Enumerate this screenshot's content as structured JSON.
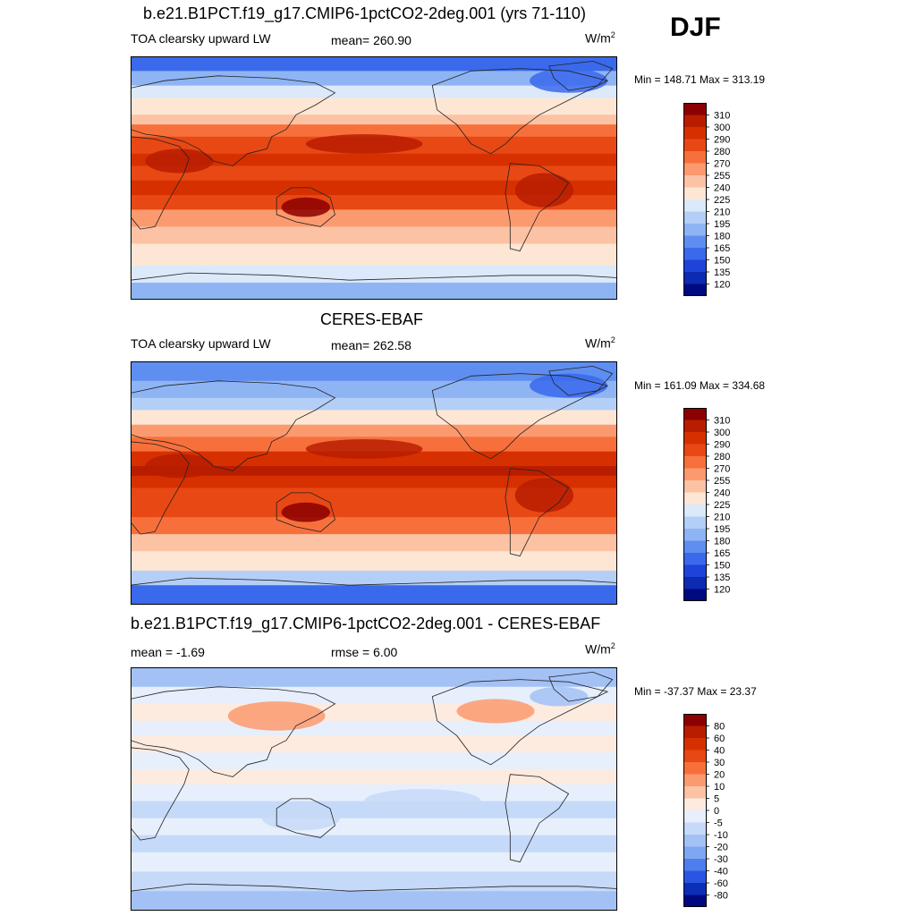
{
  "season": "DJF",
  "chart_data": [
    {
      "type": "heatmap",
      "id": "model",
      "title": "b.e21.B1PCT.f19_g17.CMIP6-1pctCO2-2deg.001 (yrs 71-110)",
      "variable": "TOA clearsky upward LW",
      "stat_left": "mean= 260.90",
      "units": "W/m",
      "units_exp": "2",
      "minmax": "Min = 148.71 Max = 313.19",
      "min": 148.71,
      "max": 313.19,
      "mean": 260.9,
      "colorbar": {
        "levels": [
          "310",
          "300",
          "290",
          "280",
          "270",
          "255",
          "240",
          "225",
          "210",
          "195",
          "180",
          "165",
          "150",
          "135",
          "120"
        ],
        "colors": [
          "#8b0000",
          "#b81d00",
          "#d73000",
          "#e84814",
          "#f7703c",
          "#fc9a6f",
          "#fcc2a4",
          "#fde6d4",
          "#dbe9fb",
          "#b4cff7",
          "#8eb4f3",
          "#5e8ef0",
          "#3a69ec",
          "#1f43d9",
          "#0c2bb0",
          "#000a80"
        ]
      }
    },
    {
      "type": "heatmap",
      "id": "obs",
      "title": "CERES-EBAF",
      "variable": "TOA clearsky upward LW",
      "stat_left": "mean= 262.58",
      "units": "W/m",
      "units_exp": "2",
      "minmax": "Min = 161.09 Max = 334.68",
      "min": 161.09,
      "max": 334.68,
      "mean": 262.58,
      "colorbar": {
        "levels": [
          "310",
          "300",
          "290",
          "280",
          "270",
          "255",
          "240",
          "225",
          "210",
          "195",
          "180",
          "165",
          "150",
          "135",
          "120"
        ],
        "colors": [
          "#8b0000",
          "#b81d00",
          "#d73000",
          "#e84814",
          "#f7703c",
          "#fc9a6f",
          "#fcc2a4",
          "#fde6d4",
          "#dbe9fb",
          "#b4cff7",
          "#8eb4f3",
          "#5e8ef0",
          "#3a69ec",
          "#1f43d9",
          "#0c2bb0",
          "#000a80"
        ]
      }
    },
    {
      "type": "heatmap",
      "id": "diff",
      "title": "b.e21.B1PCT.f19_g17.CMIP6-1pctCO2-2deg.001 - CERES-EBAF",
      "stat_left": "mean =  -1.69",
      "stat_mid": "rmse =   6.00",
      "units": "W/m",
      "units_exp": "2",
      "minmax": "Min = -37.37 Max =  23.37",
      "min": -37.37,
      "max": 23.37,
      "mean": -1.69,
      "rmse": 6.0,
      "colorbar": {
        "levels": [
          "80",
          "60",
          "40",
          "30",
          "20",
          "10",
          "5",
          "0",
          "-5",
          "-10",
          "-20",
          "-30",
          "-40",
          "-60",
          "-80"
        ],
        "colors": [
          "#8b0000",
          "#b81d00",
          "#d73000",
          "#e84814",
          "#f7703c",
          "#fc9a6f",
          "#fcc2a4",
          "#fdebe0",
          "#e6effb",
          "#c5d9f8",
          "#a3c1f5",
          "#7fa6f1",
          "#4f7ded",
          "#2a55e2",
          "#0d2fb8",
          "#000a80"
        ]
      }
    }
  ]
}
